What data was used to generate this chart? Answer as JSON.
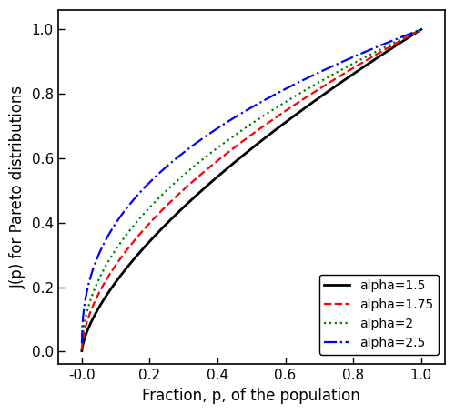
{
  "alphas": [
    1.5,
    1.75,
    2.0,
    2.5
  ],
  "colors": [
    "black",
    "red",
    "green",
    "blue"
  ],
  "linestyles": [
    "-",
    "--",
    ":",
    "-."
  ],
  "linewidths": [
    2.0,
    1.6,
    1.6,
    1.6
  ],
  "labels": [
    "alpha=1.5",
    "alpha=1.75",
    "alpha=2",
    "alpha=2.5"
  ],
  "xlabel": "Fraction, p, of the population",
  "ylabel": "J(p) for Pareto distributions",
  "xlim": [
    -0.07,
    1.07
  ],
  "ylim": [
    -0.04,
    1.06
  ],
  "xticks": [
    0.0,
    0.2,
    0.4,
    0.6,
    0.8,
    1.0
  ],
  "yticks": [
    0.0,
    0.2,
    0.4,
    0.6,
    0.8,
    1.0
  ],
  "xtick_labels": [
    "-0.0",
    "0.2",
    "0.4",
    "0.6",
    "0.8",
    "1.0"
  ],
  "ytick_labels": [
    "0.0",
    "0.2",
    "0.4",
    "0.6",
    "0.8",
    "1.0"
  ],
  "legend_fontsize": 10,
  "axis_fontsize": 12,
  "tick_fontsize": 11,
  "n_points": 500,
  "background_color": "#ffffff",
  "fig_background": "#ffffff"
}
